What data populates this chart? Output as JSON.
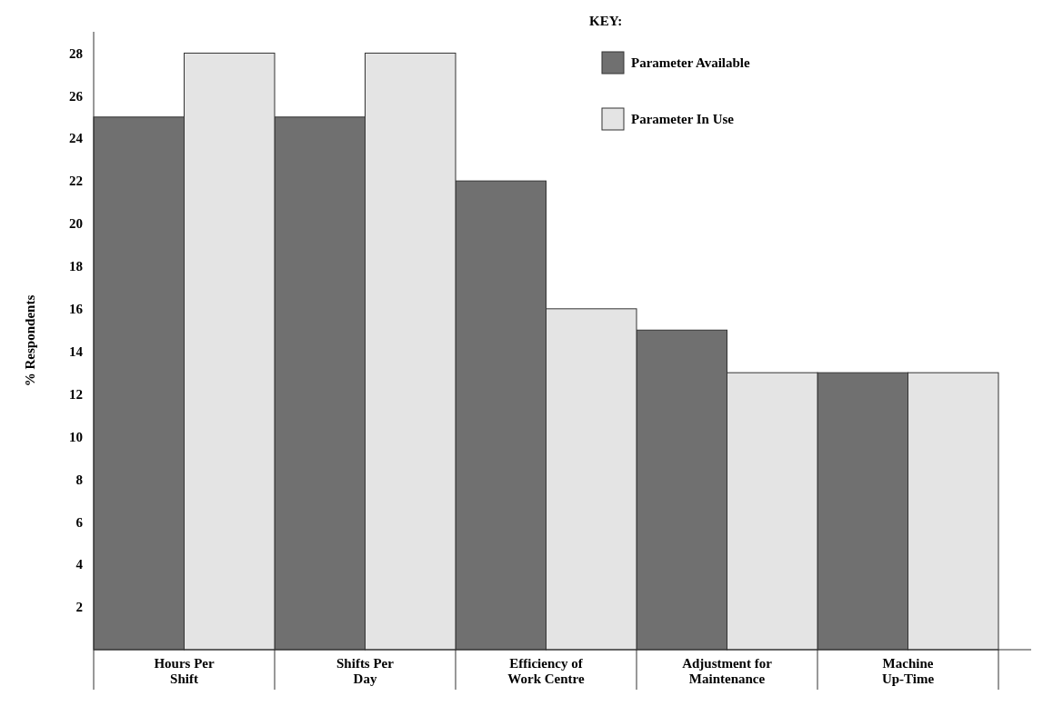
{
  "chart_data": {
    "type": "bar",
    "ylabel": "% Respondents",
    "legend_title": "KEY:",
    "categories": [
      "Hours Per\nShift",
      "Shifts Per\nDay",
      "Efficiency of\nWork Centre",
      "Adjustment for\nMaintenance",
      "Machine\nUp-Time"
    ],
    "series": [
      {
        "name": "Parameter Available",
        "color": "#707070",
        "values": [
          25,
          25,
          22,
          15,
          13
        ]
      },
      {
        "name": "Parameter In Use",
        "color": "#e4e4e4",
        "values": [
          28,
          28,
          16,
          13,
          13
        ]
      }
    ],
    "ylim": [
      0,
      29
    ],
    "yticks": [
      2,
      4,
      6,
      8,
      10,
      12,
      14,
      16,
      18,
      20,
      22,
      24,
      26,
      28
    ],
    "legend": "top right",
    "grid": false
  }
}
